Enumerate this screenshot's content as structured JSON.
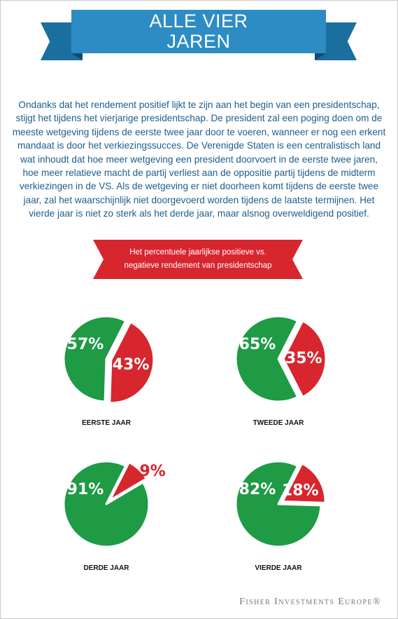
{
  "banner": {
    "line1": "ALLE VIER",
    "line2": "JAREN"
  },
  "intro": "Ondanks dat het rendement positief lijkt te zijn aan het begin van een presidentschap, stijgt het tijdens het vierjarige presidentschap. De president zal een poging doen om de meeste wetgeving tijdens de eerste twee jaar door te voeren, wanneer er nog een erkent mandaat is door het verkiezingssucces. De Verenigde Staten is een centralistisch land wat inhoudt dat hoe meer wetgeving een president doorvoert in de eerste twee jaren, hoe meer relatieve macht de partij verliest aan de oppositie partij tijdens de midterm verkiezingen in de VS. Als de wetgeving er niet doorheen komt tijdens de eerste twee jaar, zal het waarschijnlijk niet doorgevoerd worden tijdens de laatste termijnen. Het vierde jaar is niet zo sterk als het derde jaar, maar alsnog overweldigend positief.",
  "ribbon": {
    "line1": "Het percentuele jaarlijkse positieve vs.",
    "line2": "negatieve rendement van presidentschap"
  },
  "colors": {
    "positive": "#1f9a45",
    "negative": "#d7262e",
    "banner": "#2d8cc4",
    "text": "#1e5d8c"
  },
  "chart_data": [
    {
      "type": "pie",
      "title": "EERSTE JAAR",
      "categories": [
        "positief",
        "negatief"
      ],
      "values": [
        57,
        43
      ],
      "labels": [
        "57%",
        "43%"
      ]
    },
    {
      "type": "pie",
      "title": "TWEEDE JAAR",
      "categories": [
        "positief",
        "negatief"
      ],
      "values": [
        65,
        35
      ],
      "labels": [
        "65%",
        "35%"
      ]
    },
    {
      "type": "pie",
      "title": "DERDE JAAR",
      "categories": [
        "positief",
        "negatief"
      ],
      "values": [
        91,
        9
      ],
      "labels": [
        "91%",
        "9%"
      ]
    },
    {
      "type": "pie",
      "title": "VIERDE JAAR",
      "categories": [
        "positief",
        "negatief"
      ],
      "values": [
        82,
        18
      ],
      "labels": [
        "82%",
        "18%"
      ]
    }
  ],
  "footer": "Fisher Investments Europe®"
}
